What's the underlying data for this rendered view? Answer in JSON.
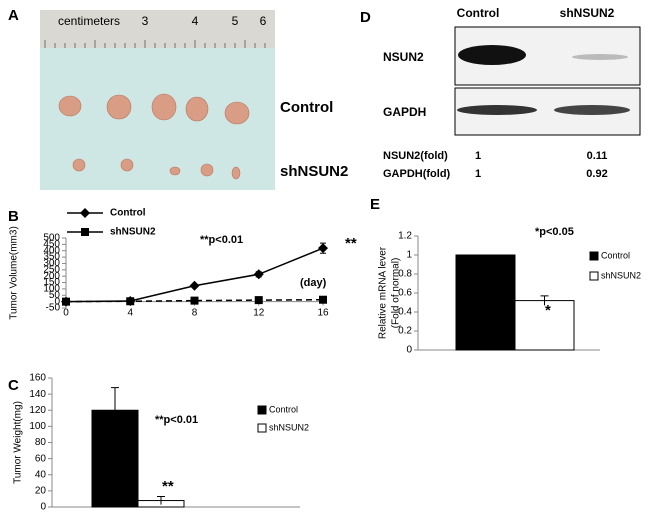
{
  "panel_a": {
    "label": "A",
    "ruler_title": "centimeters",
    "ruler_numbers": [
      "3",
      "4",
      "5",
      "6"
    ],
    "rows": [
      "Control",
      "shNSUN2"
    ]
  },
  "panel_d": {
    "label": "D",
    "columns": [
      "Control",
      "shNSUN2"
    ],
    "blots": [
      "NSUN2",
      "GAPDH"
    ],
    "table": [
      [
        "NSUN2(fold)",
        "1",
        "0.11"
      ],
      [
        "GAPDH(fold)",
        "1",
        "0.92"
      ]
    ]
  },
  "chart_data": [
    {
      "type": "line",
      "panel": "B",
      "ylabel": "Tumor Volume(mm3)",
      "x": [
        0,
        4,
        8,
        12,
        16
      ],
      "xlim": [
        0,
        16
      ],
      "xticks": [
        0,
        4,
        8,
        12,
        16
      ],
      "ylim": [
        -50,
        500
      ],
      "yticks": [
        -50,
        0,
        50,
        100,
        150,
        200,
        250,
        300,
        350,
        400,
        450,
        500
      ],
      "series": [
        {
          "name": "Control",
          "color": "#000000",
          "marker": "diamond",
          "linestyle": "solid",
          "values": [
            0,
            5,
            125,
            215,
            420
          ],
          "errors": [
            2,
            4,
            8,
            20,
            40
          ]
        },
        {
          "name": "shNSUN2",
          "color": "#000000",
          "marker": "square",
          "linestyle": "dashed",
          "values": [
            0,
            3,
            8,
            12,
            15
          ],
          "errors": [
            1,
            2,
            4,
            10,
            15
          ]
        }
      ],
      "annotations": [
        "**p<0.01",
        "**",
        "(day)"
      ],
      "legend": "top-left"
    },
    {
      "type": "bar",
      "panel": "C",
      "ylabel": "Tumor Weight(mg)",
      "ylim": [
        0,
        160
      ],
      "yticks": [
        0,
        20,
        40,
        60,
        80,
        100,
        120,
        140,
        160
      ],
      "series": [
        {
          "name": "Control",
          "color": "#000000",
          "values": [
            120
          ],
          "errors": [
            28
          ]
        },
        {
          "name": "shNSUN2",
          "color": "#ffffff",
          "values": [
            8
          ],
          "errors": [
            5
          ]
        }
      ],
      "annotations": [
        "**p<0.01",
        "**"
      ],
      "legend": "right"
    },
    {
      "type": "bar",
      "panel": "E",
      "ylabel": [
        "Relative mRNA lever",
        "(Fold of normal)"
      ],
      "ylim": [
        0,
        1.2
      ],
      "yticks": [
        0,
        0.2,
        0.4,
        0.6,
        0.8,
        1,
        1.2
      ],
      "series": [
        {
          "name": "Control",
          "color": "#000000",
          "values": [
            1
          ],
          "errors": [
            0
          ]
        },
        {
          "name": "shNSUN2",
          "color": "#ffffff",
          "values": [
            0.52
          ],
          "errors": [
            0.05
          ]
        }
      ],
      "annotations": [
        "*p<0.05",
        "*"
      ],
      "legend": "right"
    }
  ]
}
